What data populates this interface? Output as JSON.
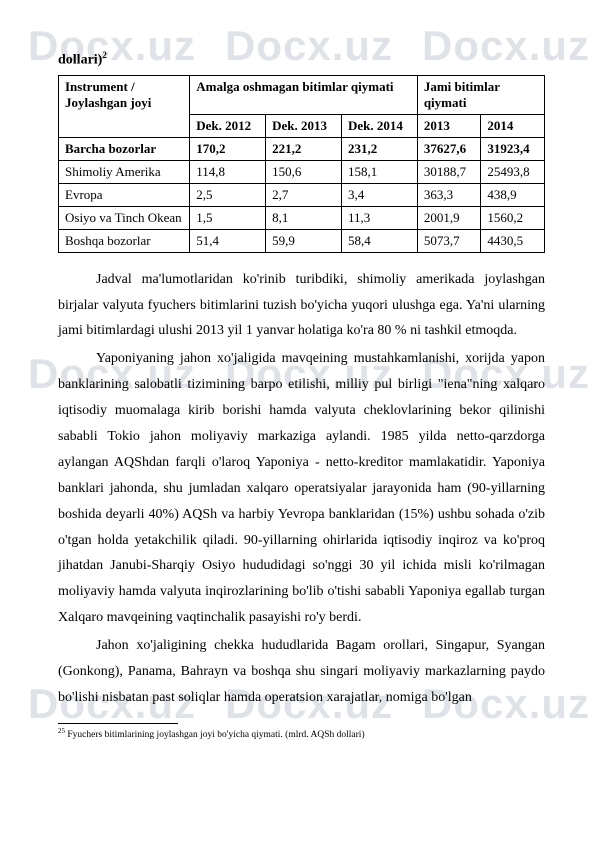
{
  "watermark": "Docx.uz",
  "heading": "dollari)",
  "heading_sup": "2",
  "table": {
    "head": {
      "c1": "Instrument / Joylashgan joyi",
      "c2": "Amalga oshmagan bitimlar qiymati",
      "c3": "Jami bitimlar qiymati",
      "sub": {
        "c2a": "Dek. 2012",
        "c2b": "Dek. 2013",
        "c2c": "Dek. 2014",
        "c3a": "2013",
        "c3b": "2014"
      }
    },
    "rows": [
      {
        "bold": true,
        "c1": "Barcha bozorlar",
        "c2": "170,2",
        "c3": "221,2",
        "c4": "231,2",
        "c5": "37627,6",
        "c6": "31923,4"
      },
      {
        "bold": false,
        "c1": "Shimoliy Amerika",
        "c2": "114,8",
        "c3": "150,6",
        "c4": "158,1",
        "c5": "30188,7",
        "c6": "25493,8"
      },
      {
        "bold": false,
        "c1": "Evropa",
        "c2": "2,5",
        "c3": "2,7",
        "c4": "3,4",
        "c5": "363,3",
        "c6": "438,9"
      },
      {
        "bold": false,
        "c1": "Osiyo va Tinch Okean",
        "c2": "1,5",
        "c3": "8,1",
        "c4": "11,3",
        "c5": "2001,9",
        "c6": "1560,2"
      },
      {
        "bold": false,
        "c1": "Boshqa bozorlar",
        "c2": "51,4",
        "c3": "59,9",
        "c4": "58,4",
        "c5": "5073,7",
        "c6": "4430,5"
      }
    ]
  },
  "paragraphs": {
    "p1": "Jadval ma'lumotlaridan ko'rinib turibdiki, shimoliy amerikada joylashgan birjalar valyuta fyuchers bitimlarini tuzish bo'yicha yuqori ulushga ega. Ya'ni ularning jami bitimlardagi ulushi  2013 yil 1 yanvar holatiga ko'ra 80 % ni tashkil etmoqda.",
    "p2": "Yaponiyaning jahon xo'jaligida mavqeining mustahkamlanishi, xorijda yapon banklarining salobatli tizimining barpo etilishi, milliy pul birligi \"iena\"ning xalqaro iqtisodiy muomalaga kirib borishi hamda valyuta cheklovlarining bekor qilinishi sababli Tokio jahon moliyaviy markaziga aylandi. 1985 yilda netto-qarzdorga aylangan AQShdan farqli o'laroq Yaponiya - netto-kreditor mamlakatidir. Yaponiya banklari jahonda, shu jumladan xalqaro operatsiyalar jarayonida ham (90-yillarning boshida deyarli 40%) AQSh va harbiy Yevropa banklaridan (15%) ushbu sohada o'zib o'tgan holda yetakchilik qiladi. 90-yillarning ohirlarida iqtisodiy inqiroz va ko'proq jihatdan Janubi-Sharqiy Osiyo hududidagi so'nggi 30 yil ichida misli ko'rilmagan moliyaviy hamda valyuta inqirozlarining bo'lib o'tishi sababli Yaponiya egallab turgan Xalqaro mavqeining vaqtinchalik pasayishi ro'y berdi.",
    "p3": "Jahon xo'jaligining chekka hududlarida Bagam orollari, Singapur, Syangan (Gonkong), Panama, Bahrayn va boshqa shu singari moliyaviy markazlarning paydo bo'lishi nisbatan past soliqlar hamda operatsion xarajatlar, nomiga bo'lgan"
  },
  "footnote": {
    "sup": "25",
    "text": " Fyuchers bitimlarining joylashgan joyi bo'yicha qiymati. (mlrd. AQSh dollari)"
  }
}
